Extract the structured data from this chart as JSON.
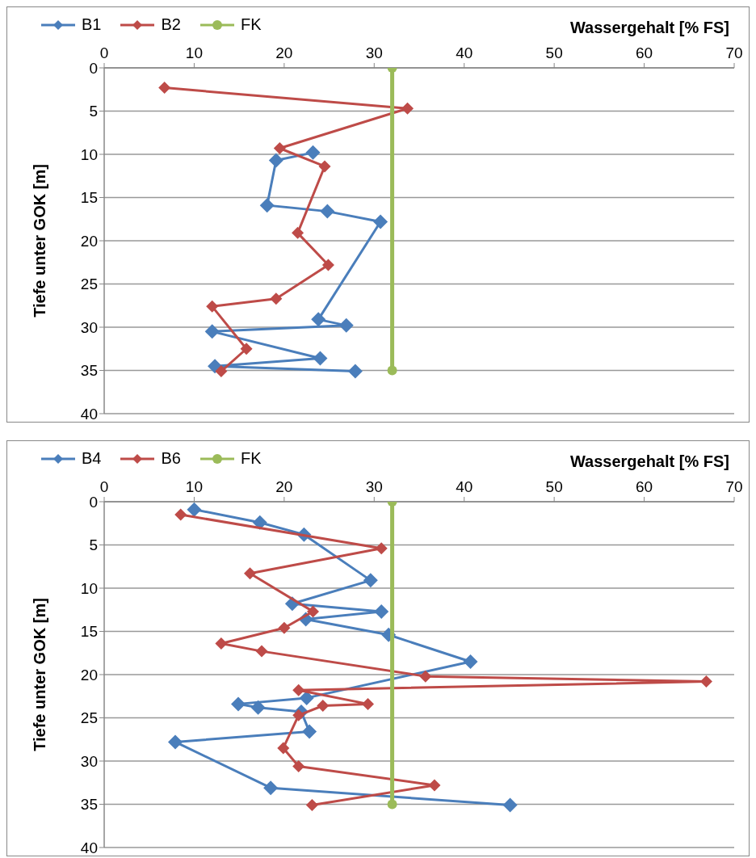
{
  "chart_data": [
    {
      "type": "line",
      "xlabel": "Wassergehalt [% FS]",
      "ylabel": "Tiefe unter GOK [m]",
      "xlim": [
        0,
        70
      ],
      "xticks": [
        0,
        10,
        20,
        30,
        40,
        50,
        60,
        70
      ],
      "ylim": [
        40,
        0
      ],
      "yticks": [
        0,
        5,
        10,
        15,
        20,
        25,
        30,
        35,
        40
      ],
      "grid": "y",
      "legend": "top left",
      "series": [
        {
          "name": "B1",
          "color": "#4a7ebb",
          "marker": "diamond",
          "x": [
            23.2,
            19.1,
            18.1,
            24.8,
            30.7,
            23.8,
            26.9,
            12.0,
            24.0,
            12.3,
            27.9
          ],
          "values": [
            9.8,
            10.7,
            15.9,
            16.6,
            17.8,
            29.1,
            29.8,
            30.5,
            33.6,
            34.5,
            35.1
          ]
        },
        {
          "name": "B2",
          "color": "#be4b48",
          "marker": "diamond",
          "x": [
            6.7,
            33.7,
            19.5,
            24.5,
            21.5,
            24.9,
            19.1,
            12.0,
            15.8,
            13.0
          ],
          "values": [
            2.3,
            4.7,
            9.3,
            11.4,
            19.1,
            22.8,
            26.7,
            27.6,
            32.5,
            35.1
          ]
        },
        {
          "name": "FK",
          "color": "#9bbb59",
          "marker": "circle",
          "x": [
            32,
            32
          ],
          "values": [
            0,
            35
          ]
        }
      ]
    },
    {
      "type": "line",
      "xlabel": "Wassergehalt [% FS]",
      "ylabel": "Tiefe unter GOK [m]",
      "xlim": [
        0,
        70
      ],
      "xticks": [
        0,
        10,
        20,
        30,
        40,
        50,
        60,
        70
      ],
      "ylim": [
        40,
        0
      ],
      "yticks": [
        0,
        5,
        10,
        15,
        20,
        25,
        30,
        35,
        40
      ],
      "grid": "y",
      "legend": "top left",
      "series": [
        {
          "name": "B4",
          "color": "#4a7ebb",
          "marker": "diamond",
          "x": [
            10.0,
            17.3,
            22.2,
            29.6,
            20.9,
            30.8,
            22.4,
            31.6,
            40.7,
            22.5,
            14.9,
            17.1,
            21.9,
            22.8,
            7.9,
            18.5,
            45.1
          ],
          "values": [
            0.9,
            2.4,
            3.8,
            9.1,
            11.8,
            12.7,
            13.6,
            15.4,
            18.5,
            22.7,
            23.4,
            23.8,
            24.3,
            26.6,
            27.8,
            33.1,
            35.1
          ]
        },
        {
          "name": "B6",
          "color": "#be4b48",
          "marker": "diamond",
          "x": [
            8.5,
            30.8,
            16.2,
            23.2,
            20.0,
            13.0,
            17.5,
            35.7,
            66.9,
            21.6,
            29.3,
            24.3,
            21.6,
            19.9,
            21.6,
            36.7,
            23.1
          ],
          "values": [
            1.5,
            5.4,
            8.3,
            12.7,
            14.6,
            16.4,
            17.3,
            20.2,
            20.8,
            21.8,
            23.4,
            23.6,
            24.7,
            28.5,
            30.6,
            32.8,
            35.1
          ]
        },
        {
          "name": "FK",
          "color": "#9bbb59",
          "marker": "circle",
          "x": [
            32,
            32
          ],
          "values": [
            0,
            35
          ]
        }
      ]
    }
  ]
}
